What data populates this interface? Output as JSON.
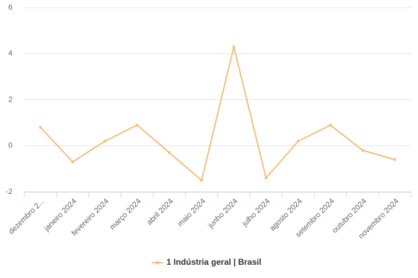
{
  "chart_data": {
    "type": "line",
    "categories": [
      "dezembro 2...",
      "janeiro 2024",
      "fevereiro 2024",
      "março 2024",
      "abril 2024",
      "maio 2024",
      "junho 2024",
      "julho 2024",
      "agosto 2024",
      "setembro 2024",
      "outubro 2024",
      "novembro 2024"
    ],
    "series": [
      {
        "name": "1 Indústria geral | Brasil",
        "color": "#f2bf7c",
        "values": [
          0.8,
          -0.7,
          0.2,
          0.9,
          -0.3,
          -1.5,
          4.3,
          -1.4,
          0.2,
          0.9,
          -0.2,
          -0.6
        ]
      }
    ],
    "ylim": [
      -2,
      6
    ],
    "yticks": [
      -2,
      0,
      2,
      4,
      6
    ],
    "grid": true,
    "legend": "bottom"
  }
}
